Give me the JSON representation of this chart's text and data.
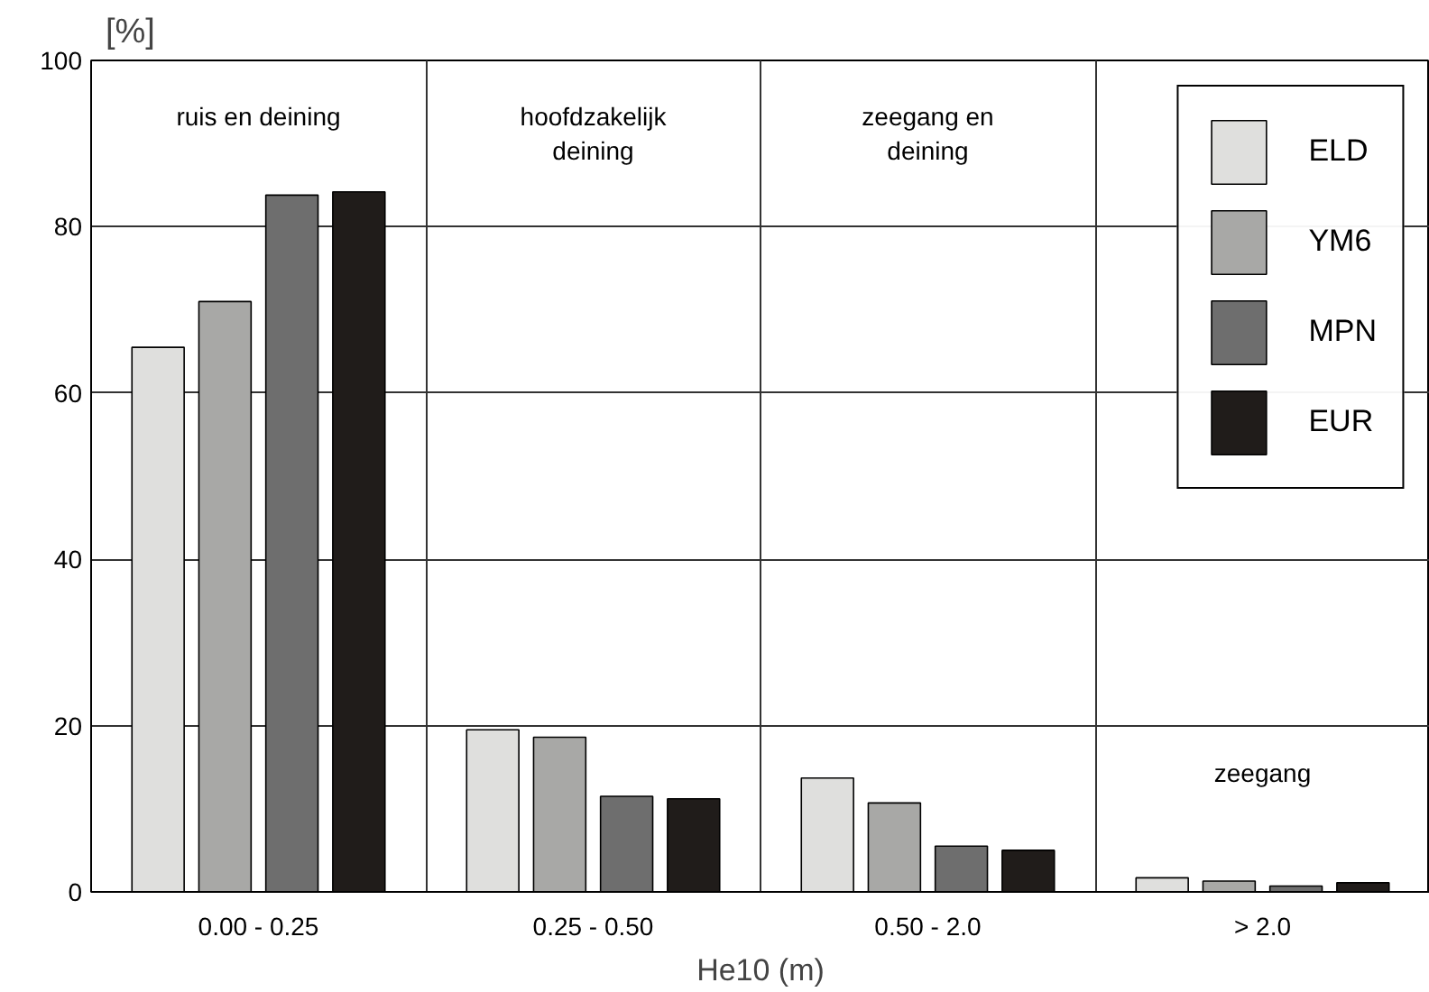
{
  "chart_data": {
    "type": "bar",
    "xlabel": "He10 (m)",
    "ylabel": "[%]",
    "categories": [
      "0.00 - 0.25",
      "0.25 - 0.50",
      "0.50 - 2.0",
      "> 2.0"
    ],
    "series": [
      {
        "name": "ELD",
        "color": "#dfdfdd",
        "values": [
          65.5,
          19.5,
          13.7,
          1.7
        ]
      },
      {
        "name": "YM6",
        "color": "#a8a8a6",
        "values": [
          71,
          18.6,
          10.7,
          1.3
        ]
      },
      {
        "name": "MPN",
        "color": "#6e6e6e",
        "values": [
          83.8,
          11.5,
          5.5,
          0.7
        ]
      },
      {
        "name": "EUR",
        "color": "#201c1a",
        "values": [
          84.2,
          11.2,
          5,
          1.1
        ]
      }
    ],
    "ylim": [
      0,
      100
    ],
    "yticks": [
      0,
      20,
      40,
      60,
      80,
      100
    ],
    "grid": true,
    "legend": "top right",
    "annotations": [
      "ruis en deining",
      "hoofdzakelijk\ndeining",
      "zeegang en\ndeining",
      "zeegang"
    ]
  }
}
